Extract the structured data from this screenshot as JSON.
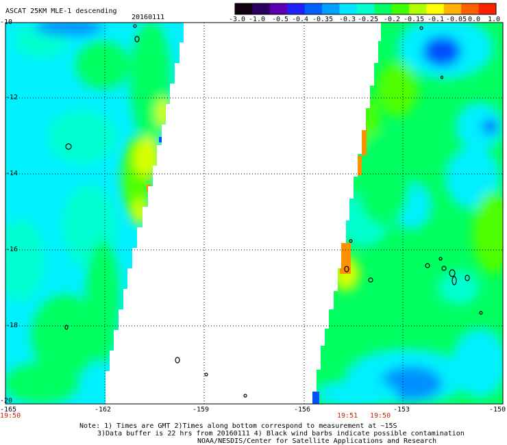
{
  "header": {
    "title": "ASCAT 25KM MLE-1 descending",
    "date": "20160111"
  },
  "colorbar": {
    "tick_labels": [
      "-3.0",
      "-1.0",
      "-0.5",
      "-0.4",
      "-0.35",
      "-0.3",
      "-0.25",
      "-0.2",
      "-0.15",
      "-0.1",
      "-0.05",
      "0.0",
      "1.0"
    ],
    "colors": [
      "#100010",
      "#2a0060",
      "#5a00b0",
      "#2020ff",
      "#0060ff",
      "#00a0ff",
      "#00e6ff",
      "#00ffcc",
      "#00ff66",
      "#40ff00",
      "#b0ff00",
      "#ffff00",
      "#ffb000",
      "#ff6000",
      "#ff2000"
    ]
  },
  "axes": {
    "lon_labels": [
      "-165",
      "-162",
      "-159",
      "-156",
      "-153",
      "-150"
    ],
    "lat_labels": [
      "-10",
      "-12",
      "-14",
      "-16",
      "-18",
      "-20"
    ]
  },
  "pass_times": {
    "left": "19:50",
    "right_a": "19:51",
    "right_b": "19:50"
  },
  "footer": {
    "line1": "Note: 1) Times are GMT 2)Times along bottom correspond to measurement at ~15S",
    "line2": "3)Data buffer is 22 hrs from 20160111 4) Black wind barbs indicate possible contamination",
    "line3": "NOAA/NESDIS/Center for Satellite Applications and Research"
  },
  "palette": {
    "cyan": "#00f0ff",
    "aqua": "#00ffd0",
    "green": "#00ff60",
    "lime": "#50ff00",
    "yellow": "#d8ff00",
    "orange": "#ff9000",
    "blue": "#0050ff",
    "skyblue": "#0090ff"
  }
}
